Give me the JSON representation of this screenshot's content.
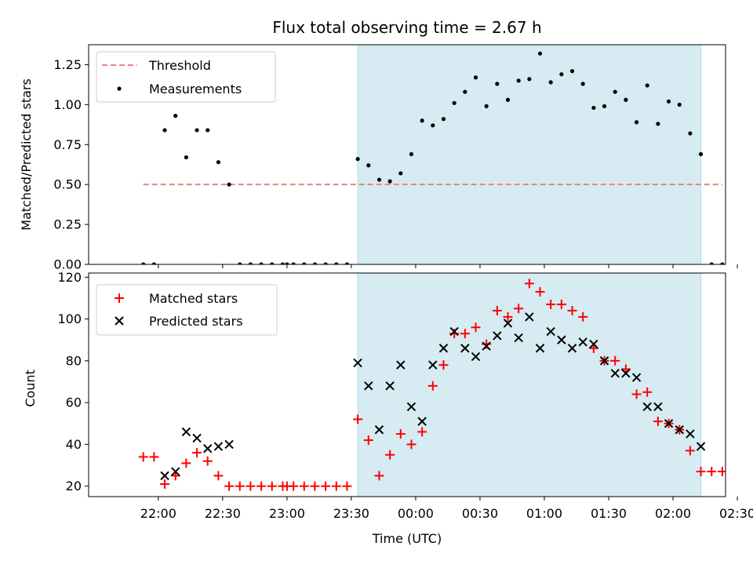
{
  "figure": {
    "title": "Flux total observing time = 2.67 h",
    "xlabel": "Time (UTC)",
    "x_ticks": [
      "22:00",
      "22:30",
      "23:00",
      "23:30",
      "00:00",
      "00:30",
      "01:00",
      "01:30",
      "02:00",
      "02:30"
    ],
    "shaded_span": [
      "23:33",
      "02:13"
    ],
    "shade_color": "#add8e6"
  },
  "chart_data": [
    {
      "type": "scatter",
      "ylabel": "Matched/Predicted stars",
      "ylim": [
        0,
        1.375
      ],
      "y_ticks": [
        "0.00",
        "0.25",
        "0.50",
        "0.75",
        "1.00",
        "1.25"
      ],
      "legend_position": "top-left",
      "threshold": {
        "name": "Threshold",
        "value": 0.5,
        "from": "21:53",
        "to": "02:23",
        "color": "#f08080"
      },
      "series": [
        {
          "name": "Measurements",
          "color": "#000000",
          "marker": "dot",
          "x": [
            "21:53",
            "21:58",
            "22:03",
            "22:08",
            "22:13",
            "22:18",
            "22:23",
            "22:28",
            "22:33",
            "22:38",
            "22:43",
            "22:48",
            "22:53",
            "22:58",
            "23:00",
            "23:03",
            "23:08",
            "23:13",
            "23:18",
            "23:23",
            "23:28",
            "23:33",
            "23:38",
            "23:43",
            "23:48",
            "23:53",
            "23:58",
            "00:03",
            "00:08",
            "00:13",
            "00:18",
            "00:23",
            "00:28",
            "00:33",
            "00:38",
            "00:43",
            "00:48",
            "00:53",
            "00:58",
            "01:03",
            "01:08",
            "01:13",
            "01:18",
            "01:23",
            "01:28",
            "01:33",
            "01:38",
            "01:43",
            "01:48",
            "01:53",
            "01:58",
            "02:03",
            "02:08",
            "02:13",
            "02:18",
            "02:23"
          ],
          "y": [
            0,
            0,
            0.84,
            0.93,
            0.67,
            0.84,
            0.84,
            0.64,
            0.5,
            0,
            0,
            0,
            0,
            0,
            0,
            0,
            0,
            0,
            0,
            0,
            0,
            0.66,
            0.62,
            0.53,
            0.52,
            0.57,
            0.69,
            0.9,
            0.87,
            0.91,
            1.01,
            1.08,
            1.17,
            0.99,
            1.13,
            1.03,
            1.15,
            1.16,
            1.32,
            1.14,
            1.19,
            1.21,
            1.13,
            0.98,
            0.99,
            1.08,
            1.03,
            0.89,
            1.12,
            0.88,
            1.02,
            1.0,
            0.82,
            0.69,
            0,
            0
          ]
        }
      ]
    },
    {
      "type": "scatter",
      "ylabel": "Count",
      "ylim": [
        15,
        122
      ],
      "y_ticks": [
        "20",
        "40",
        "60",
        "80",
        "100",
        "120"
      ],
      "legend_position": "top-left",
      "series": [
        {
          "name": "Matched stars",
          "color": "#ff0000",
          "marker": "plus",
          "x": [
            "21:53",
            "21:58",
            "22:03",
            "22:08",
            "22:13",
            "22:18",
            "22:23",
            "22:28",
            "22:33",
            "22:38",
            "22:43",
            "22:48",
            "22:53",
            "22:58",
            "23:00",
            "23:03",
            "23:08",
            "23:13",
            "23:18",
            "23:23",
            "23:28",
            "23:33",
            "23:38",
            "23:43",
            "23:48",
            "23:53",
            "23:58",
            "00:03",
            "00:08",
            "00:13",
            "00:18",
            "00:23",
            "00:28",
            "00:33",
            "00:38",
            "00:43",
            "00:48",
            "00:53",
            "00:58",
            "01:03",
            "01:08",
            "01:13",
            "01:18",
            "01:23",
            "01:28",
            "01:33",
            "01:38",
            "01:43",
            "01:48",
            "01:53",
            "01:58",
            "02:03",
            "02:08",
            "02:13",
            "02:18",
            "02:23"
          ],
          "y": [
            34,
            34,
            21,
            25,
            31,
            36,
            32,
            25,
            20,
            20,
            20,
            20,
            20,
            20,
            20,
            20,
            20,
            20,
            20,
            20,
            20,
            52,
            42,
            25,
            35,
            45,
            40,
            46,
            68,
            78,
            93,
            93,
            96,
            88,
            104,
            101,
            105,
            117,
            113,
            107,
            107,
            104,
            101,
            86,
            80,
            80,
            76,
            64,
            65,
            51,
            50,
            47,
            37,
            27,
            27,
            27
          ]
        },
        {
          "name": "Predicted stars",
          "color": "#000000",
          "marker": "x",
          "x": [
            "22:03",
            "22:08",
            "22:13",
            "22:18",
            "22:23",
            "22:28",
            "22:33",
            "23:33",
            "23:38",
            "23:43",
            "23:48",
            "23:53",
            "23:58",
            "00:03",
            "00:08",
            "00:13",
            "00:18",
            "00:23",
            "00:28",
            "00:33",
            "00:38",
            "00:43",
            "00:48",
            "00:53",
            "00:58",
            "01:03",
            "01:08",
            "01:13",
            "01:18",
            "01:23",
            "01:28",
            "01:33",
            "01:38",
            "01:43",
            "01:48",
            "01:53",
            "01:58",
            "02:03",
            "02:08",
            "02:13"
          ],
          "y": [
            25,
            27,
            46,
            43,
            38,
            39,
            40,
            79,
            68,
            47,
            68,
            78,
            58,
            51,
            78,
            86,
            94,
            86,
            82,
            87,
            92,
            98,
            91,
            101,
            86,
            94,
            90,
            86,
            89,
            88,
            80,
            74,
            74,
            72,
            58,
            58,
            50,
            47,
            45,
            39
          ]
        }
      ]
    }
  ]
}
